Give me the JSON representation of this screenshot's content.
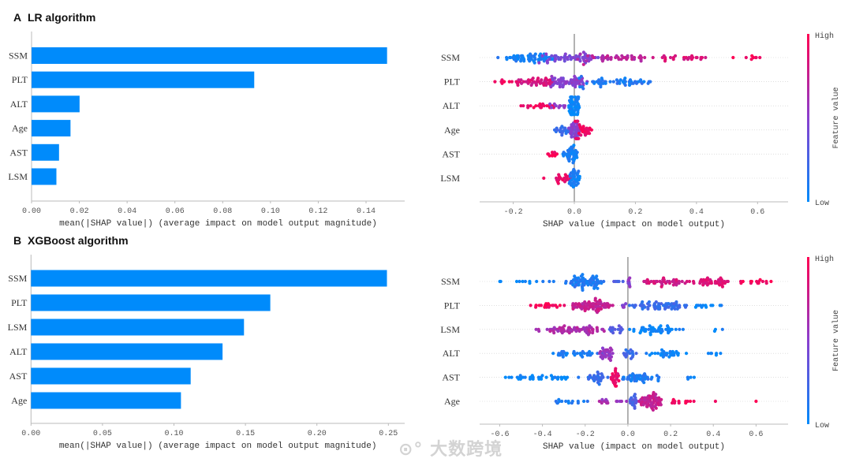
{
  "watermark": "大数跨境",
  "colors": {
    "bar": "#008bfb",
    "low": "#008bfb",
    "high": "#ff0052"
  },
  "chart_data": [
    {
      "panel": "A",
      "title": "LR algorithm",
      "type": "bar",
      "categories": [
        "SSM",
        "PLT",
        "ALT",
        "Age",
        "AST",
        "LSM"
      ],
      "values": [
        0.1488,
        0.0932,
        0.0201,
        0.0163,
        0.0115,
        0.0104
      ],
      "xlabel": "mean(|SHAP value|) (average impact on model output magnitude)",
      "xlim": [
        0,
        0.155
      ],
      "xticks": [
        "0.00",
        "0.02",
        "0.04",
        "0.06",
        "0.08",
        "0.10",
        "0.12",
        "0.14"
      ]
    },
    {
      "panel": "A",
      "type": "scatter",
      "subtype": "beeswarm",
      "categories": [
        "SSM",
        "PLT",
        "ALT",
        "Age",
        "AST",
        "LSM"
      ],
      "xlabel": "SHAP value (impact on model output)",
      "xlim": [
        -0.31,
        0.7
      ],
      "xticks": [
        "-0.2",
        "0.0",
        "0.2",
        "0.4",
        "0.6"
      ],
      "colorbar": {
        "label": "Feature value",
        "high": "High",
        "low": "Low"
      },
      "segments_note": "each segment: [shap_min, shap_max, count, feature_value 0-1]",
      "segments": [
        [
          [
            -0.25,
            -0.05,
            60,
            0.08
          ],
          [
            -0.12,
            0.1,
            55,
            0.45
          ],
          [
            0.0,
            0.25,
            40,
            0.7
          ],
          [
            0.25,
            0.45,
            25,
            0.85
          ],
          [
            0.45,
            0.65,
            8,
            0.97
          ]
        ],
        [
          [
            -0.27,
            -0.15,
            10,
            0.97
          ],
          [
            -0.2,
            -0.05,
            45,
            0.82
          ],
          [
            -0.1,
            0.05,
            55,
            0.5
          ],
          [
            0.0,
            0.27,
            55,
            0.12
          ]
        ],
        [
          [
            -0.18,
            -0.05,
            20,
            0.92
          ],
          [
            -0.08,
            -0.02,
            10,
            0.5
          ],
          [
            -0.02,
            0.02,
            60,
            0.04
          ]
        ],
        [
          [
            -0.07,
            -0.01,
            20,
            0.2
          ],
          [
            -0.02,
            0.02,
            40,
            0.5
          ],
          [
            0.0,
            0.06,
            30,
            0.92
          ]
        ],
        [
          [
            -0.1,
            -0.04,
            10,
            0.95
          ],
          [
            -0.04,
            0.02,
            40,
            0.08
          ]
        ],
        [
          [
            -0.1,
            -0.1,
            1,
            0.95
          ],
          [
            -0.07,
            -0.01,
            20,
            0.9
          ],
          [
            -0.02,
            0.02,
            40,
            0.08
          ]
        ]
      ]
    },
    {
      "panel": "B",
      "title": "XGBoost algorithm",
      "type": "bar",
      "categories": [
        "SSM",
        "PLT",
        "LSM",
        "ALT",
        "AST",
        "Age"
      ],
      "values": [
        0.249,
        0.1674,
        0.149,
        0.134,
        0.1117,
        0.1049
      ],
      "xlabel": "mean(|SHAP value|) (average impact on model output magnitude)",
      "xlim": [
        0,
        0.26
      ],
      "xticks": [
        "0.00",
        "0.05",
        "0.10",
        "0.15",
        "0.20",
        "0.25"
      ]
    },
    {
      "panel": "B",
      "type": "scatter",
      "subtype": "beeswarm",
      "categories": [
        "SSM",
        "PLT",
        "LSM",
        "ALT",
        "AST",
        "Age"
      ],
      "xlabel": "SHAP value (impact on model output)",
      "xlim": [
        -0.694,
        0.75
      ],
      "xticks": [
        "-0.6",
        "-0.4",
        "-0.2",
        "0.0",
        "0.2",
        "0.4",
        "0.6"
      ],
      "colorbar": {
        "label": "Feature value",
        "high": "High",
        "low": "Low"
      },
      "segments": [
        [
          [
            -0.62,
            -0.3,
            12,
            0.05
          ],
          [
            -0.3,
            -0.1,
            70,
            0.12
          ],
          [
            -0.1,
            0.0,
            5,
            0.3
          ],
          [
            0.0,
            0.01,
            8,
            0.5
          ],
          [
            0.05,
            0.3,
            40,
            0.8
          ],
          [
            0.3,
            0.48,
            40,
            0.85
          ],
          [
            0.48,
            0.68,
            15,
            0.95
          ]
        ],
        [
          [
            -0.48,
            -0.25,
            20,
            0.95
          ],
          [
            -0.3,
            -0.05,
            70,
            0.75
          ],
          [
            -0.05,
            0.0,
            5,
            0.5
          ],
          [
            0.0,
            0.3,
            60,
            0.2
          ],
          [
            0.3,
            0.5,
            12,
            0.05
          ]
        ],
        [
          [
            -0.45,
            -0.35,
            5,
            0.6
          ],
          [
            -0.38,
            -0.1,
            60,
            0.65
          ],
          [
            -0.1,
            0.0,
            15,
            0.3
          ],
          [
            0.0,
            0.28,
            45,
            0.05
          ],
          [
            0.35,
            0.49,
            3,
            0.05
          ]
        ],
        [
          [
            -0.4,
            -0.1,
            35,
            0.1
          ],
          [
            -0.15,
            -0.06,
            30,
            0.55
          ],
          [
            -0.05,
            0.05,
            15,
            0.2
          ],
          [
            0.08,
            0.3,
            30,
            0.05
          ],
          [
            0.35,
            0.48,
            6,
            0.05
          ]
        ],
        [
          [
            -0.62,
            -0.2,
            35,
            0.05
          ],
          [
            -0.2,
            -0.08,
            25,
            0.2
          ],
          [
            -0.08,
            -0.04,
            25,
            0.9
          ],
          [
            -0.04,
            0.18,
            45,
            0.1
          ],
          [
            0.2,
            0.37,
            4,
            0.05
          ]
        ],
        [
          [
            -0.4,
            -0.15,
            15,
            0.1
          ],
          [
            -0.15,
            0.0,
            15,
            0.6
          ],
          [
            0.0,
            0.05,
            20,
            0.3
          ],
          [
            0.05,
            0.17,
            60,
            0.75
          ],
          [
            0.17,
            0.33,
            12,
            0.95
          ],
          [
            0.41,
            0.41,
            1,
            1
          ],
          [
            0.6,
            0.6,
            1,
            1
          ]
        ]
      ]
    }
  ]
}
